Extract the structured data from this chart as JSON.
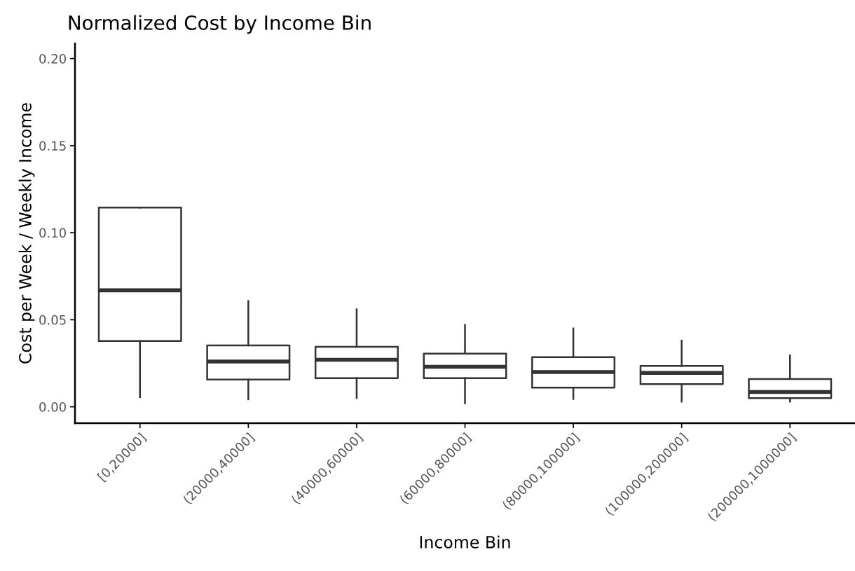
{
  "chart_data": {
    "type": "box",
    "title": "Normalized Cost by Income Bin",
    "xlabel": "Income Bin",
    "ylabel": "Cost per Week / Weekly Income",
    "categories": [
      "[0,20000]",
      "(20000,40000]",
      "(40000,60000]",
      "(60000,80000]",
      "(80000,100000]",
      "(100000,200000]",
      "(200000,1000000]"
    ],
    "boxes": [
      {
        "low": 0.0055,
        "q1": 0.0378,
        "median": 0.0669,
        "q3": 0.1144,
        "high": 0.1144
      },
      {
        "low": 0.0043,
        "q1": 0.0156,
        "median": 0.026,
        "q3": 0.0353,
        "high": 0.0608
      },
      {
        "low": 0.005,
        "q1": 0.0165,
        "median": 0.027,
        "q3": 0.0345,
        "high": 0.056
      },
      {
        "low": 0.002,
        "q1": 0.0165,
        "median": 0.023,
        "q3": 0.0305,
        "high": 0.047
      },
      {
        "low": 0.0045,
        "q1": 0.011,
        "median": 0.02,
        "q3": 0.0285,
        "high": 0.045
      },
      {
        "low": 0.003,
        "q1": 0.013,
        "median": 0.0195,
        "q3": 0.0235,
        "high": 0.038
      },
      {
        "low": 0.003,
        "q1": 0.005,
        "median": 0.0085,
        "q3": 0.016,
        "high": 0.0295
      }
    ],
    "color": "#333333",
    "ylim": [
      -0.0094,
      0.2087
    ],
    "yticks": [
      {
        "value": 0,
        "label": "0.00"
      },
      {
        "value": 0.05,
        "label": "0.05"
      },
      {
        "value": 0.1,
        "label": "0.10"
      },
      {
        "value": 0.15,
        "label": "0.15"
      },
      {
        "value": 0.2,
        "label": "0.20"
      }
    ],
    "grid": false
  }
}
